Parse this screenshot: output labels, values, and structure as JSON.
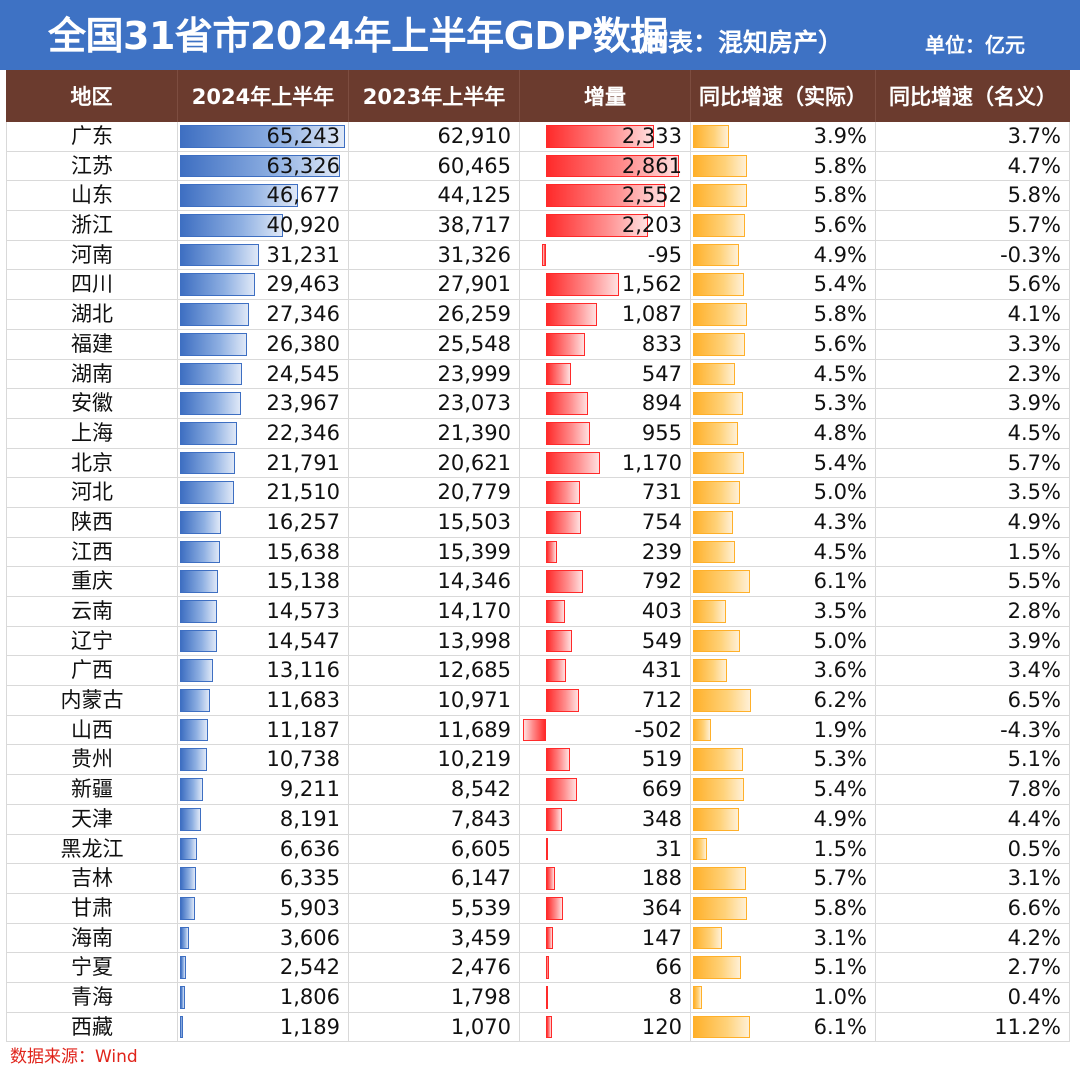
{
  "title": {
    "main": "全国31省市2024年上半年GDP数据",
    "sub": "（制表：混知房产）",
    "unit": "单位：亿元"
  },
  "headers": [
    "地区",
    "2024年上半年",
    "2023年上半年",
    "增量",
    "同比增速（实际）",
    "同比增速（名义）"
  ],
  "colors": {
    "title_bg": "#3e72c4",
    "header_bg": "#6b3b2e",
    "bar_gdp": "#3e6fc2",
    "bar_increase": "#ff2a2a",
    "bar_growth": "#ffb02a",
    "footer_text": "#e0241b"
  },
  "rows": [
    {
      "region": "广东",
      "h1_2024": "65,243",
      "h1_2023": "62,910",
      "increase": "2,333",
      "real_growth": "3.9%",
      "nominal_growth": "3.7%"
    },
    {
      "region": "江苏",
      "h1_2024": "63,326",
      "h1_2023": "60,465",
      "increase": "2,861",
      "real_growth": "5.8%",
      "nominal_growth": "4.7%"
    },
    {
      "region": "山东",
      "h1_2024": "46,677",
      "h1_2023": "44,125",
      "increase": "2,552",
      "real_growth": "5.8%",
      "nominal_growth": "5.8%"
    },
    {
      "region": "浙江",
      "h1_2024": "40,920",
      "h1_2023": "38,717",
      "increase": "2,203",
      "real_growth": "5.6%",
      "nominal_growth": "5.7%"
    },
    {
      "region": "河南",
      "h1_2024": "31,231",
      "h1_2023": "31,326",
      "increase": "-95",
      "real_growth": "4.9%",
      "nominal_growth": "-0.3%"
    },
    {
      "region": "四川",
      "h1_2024": "29,463",
      "h1_2023": "27,901",
      "increase": "1,562",
      "real_growth": "5.4%",
      "nominal_growth": "5.6%"
    },
    {
      "region": "湖北",
      "h1_2024": "27,346",
      "h1_2023": "26,259",
      "increase": "1,087",
      "real_growth": "5.8%",
      "nominal_growth": "4.1%"
    },
    {
      "region": "福建",
      "h1_2024": "26,380",
      "h1_2023": "25,548",
      "increase": "833",
      "real_growth": "5.6%",
      "nominal_growth": "3.3%"
    },
    {
      "region": "湖南",
      "h1_2024": "24,545",
      "h1_2023": "23,999",
      "increase": "547",
      "real_growth": "4.5%",
      "nominal_growth": "2.3%"
    },
    {
      "region": "安徽",
      "h1_2024": "23,967",
      "h1_2023": "23,073",
      "increase": "894",
      "real_growth": "5.3%",
      "nominal_growth": "3.9%"
    },
    {
      "region": "上海",
      "h1_2024": "22,346",
      "h1_2023": "21,390",
      "increase": "955",
      "real_growth": "4.8%",
      "nominal_growth": "4.5%"
    },
    {
      "region": "北京",
      "h1_2024": "21,791",
      "h1_2023": "20,621",
      "increase": "1,170",
      "real_growth": "5.4%",
      "nominal_growth": "5.7%"
    },
    {
      "region": "河北",
      "h1_2024": "21,510",
      "h1_2023": "20,779",
      "increase": "731",
      "real_growth": "5.0%",
      "nominal_growth": "3.5%"
    },
    {
      "region": "陕西",
      "h1_2024": "16,257",
      "h1_2023": "15,503",
      "increase": "754",
      "real_growth": "4.3%",
      "nominal_growth": "4.9%"
    },
    {
      "region": "江西",
      "h1_2024": "15,638",
      "h1_2023": "15,399",
      "increase": "239",
      "real_growth": "4.5%",
      "nominal_growth": "1.5%"
    },
    {
      "region": "重庆",
      "h1_2024": "15,138",
      "h1_2023": "14,346",
      "increase": "792",
      "real_growth": "6.1%",
      "nominal_growth": "5.5%"
    },
    {
      "region": "云南",
      "h1_2024": "14,573",
      "h1_2023": "14,170",
      "increase": "403",
      "real_growth": "3.5%",
      "nominal_growth": "2.8%"
    },
    {
      "region": "辽宁",
      "h1_2024": "14,547",
      "h1_2023": "13,998",
      "increase": "549",
      "real_growth": "5.0%",
      "nominal_growth": "3.9%"
    },
    {
      "region": "广西",
      "h1_2024": "13,116",
      "h1_2023": "12,685",
      "increase": "431",
      "real_growth": "3.6%",
      "nominal_growth": "3.4%"
    },
    {
      "region": "内蒙古",
      "h1_2024": "11,683",
      "h1_2023": "10,971",
      "increase": "712",
      "real_growth": "6.2%",
      "nominal_growth": "6.5%"
    },
    {
      "region": "山西",
      "h1_2024": "11,187",
      "h1_2023": "11,689",
      "increase": "-502",
      "real_growth": "1.9%",
      "nominal_growth": "-4.3%"
    },
    {
      "region": "贵州",
      "h1_2024": "10,738",
      "h1_2023": "10,219",
      "increase": "519",
      "real_growth": "5.3%",
      "nominal_growth": "5.1%"
    },
    {
      "region": "新疆",
      "h1_2024": "9,211",
      "h1_2023": "8,542",
      "increase": "669",
      "real_growth": "5.4%",
      "nominal_growth": "7.8%"
    },
    {
      "region": "天津",
      "h1_2024": "8,191",
      "h1_2023": "7,843",
      "increase": "348",
      "real_growth": "4.9%",
      "nominal_growth": "4.4%"
    },
    {
      "region": "黑龙江",
      "h1_2024": "6,636",
      "h1_2023": "6,605",
      "increase": "31",
      "real_growth": "1.5%",
      "nominal_growth": "0.5%"
    },
    {
      "region": "吉林",
      "h1_2024": "6,335",
      "h1_2023": "6,147",
      "increase": "188",
      "real_growth": "5.7%",
      "nominal_growth": "3.1%"
    },
    {
      "region": "甘肃",
      "h1_2024": "5,903",
      "h1_2023": "5,539",
      "increase": "364",
      "real_growth": "5.8%",
      "nominal_growth": "6.6%"
    },
    {
      "region": "海南",
      "h1_2024": "3,606",
      "h1_2023": "3,459",
      "increase": "147",
      "real_growth": "3.1%",
      "nominal_growth": "4.2%"
    },
    {
      "region": "宁夏",
      "h1_2024": "2,542",
      "h1_2023": "2,476",
      "increase": "66",
      "real_growth": "5.1%",
      "nominal_growth": "2.7%"
    },
    {
      "region": "青海",
      "h1_2024": "1,806",
      "h1_2023": "1,798",
      "increase": "8",
      "real_growth": "1.0%",
      "nominal_growth": "0.4%"
    },
    {
      "region": "西藏",
      "h1_2024": "1,189",
      "h1_2023": "1,070",
      "increase": "120",
      "real_growth": "6.1%",
      "nominal_growth": "11.2%"
    }
  ],
  "footer": "数据来源：Wind"
}
